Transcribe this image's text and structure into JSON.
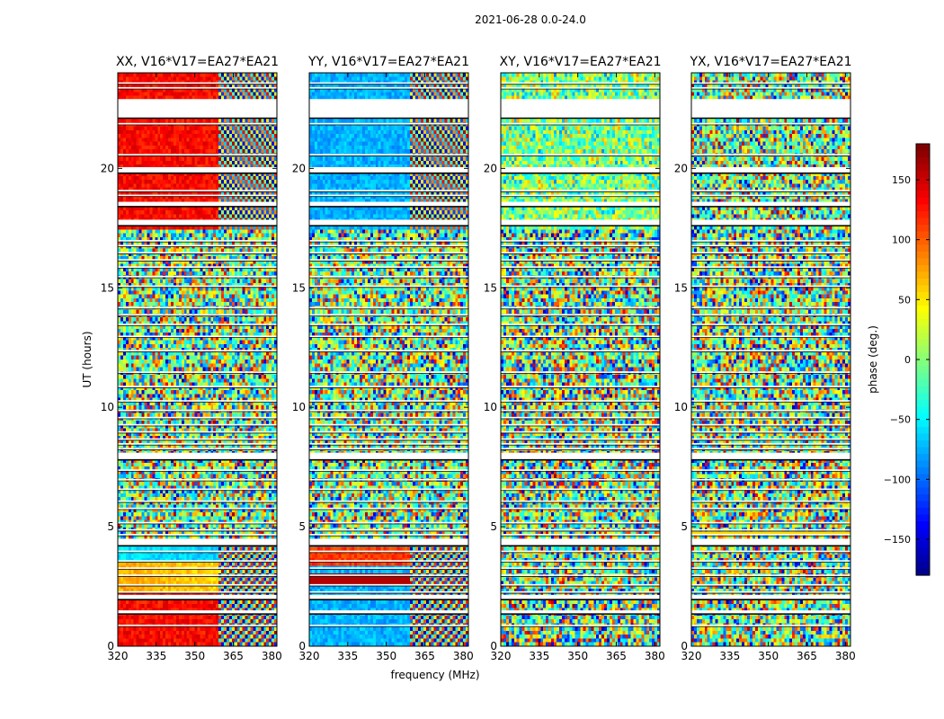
{
  "chart_data": {
    "type": "heatmap",
    "suptitle": "2021-06-28 0.0-24.0",
    "panels": [
      {
        "title": "XX, V16*V17=EA27*EA21",
        "pattern": "xx"
      },
      {
        "title": "YY, V16*V17=EA27*EA21",
        "pattern": "yy"
      },
      {
        "title": "XY, V16*V17=EA27*EA21",
        "pattern": "xy"
      },
      {
        "title": "YX, V16*V17=EA27*EA21",
        "pattern": "yx"
      }
    ],
    "xlabel": "frequency (MHz)",
    "ylabel": "UT (hours)",
    "xlim": [
      320,
      382
    ],
    "ylim": [
      0,
      24
    ],
    "xticks": [
      320,
      335,
      350,
      365,
      380
    ],
    "yticks": [
      0,
      5,
      10,
      15,
      20
    ],
    "colorbar": {
      "label": "phase (deg.)",
      "range": [
        -180,
        180
      ],
      "ticks": [
        150,
        100,
        50,
        0,
        -50,
        -100,
        -150
      ],
      "tick_labels": [
        "150",
        "100",
        "50",
        "0",
        "−50",
        "−100",
        "−150"
      ],
      "colormap": "jet"
    },
    "data_gaps_hours": [
      [
        22.9,
        22.1
      ],
      [
        20.05,
        19.8
      ],
      [
        18.6,
        18.4
      ],
      [
        17.85,
        17.6
      ],
      [
        8.1,
        7.8
      ],
      [
        4.5,
        4.2
      ],
      [
        2.15,
        1.95
      ],
      [
        1.5,
        1.35
      ]
    ],
    "thin_gaps_hours": [
      23.6,
      23.4,
      21.9,
      20.6,
      19.1,
      18.9,
      17.0,
      16.8,
      16.5,
      16.2,
      15.9,
      15.5,
      15.1,
      14.2,
      13.9,
      13.5,
      13.0,
      12.4,
      11.5,
      10.9,
      10.3,
      9.9,
      9.6,
      9.3,
      9.0,
      8.7,
      8.5,
      8.3,
      7.4,
      7.0,
      6.6,
      6.1,
      5.8,
      5.2,
      4.9,
      4.7,
      4.0,
      3.6,
      3.3,
      3.0,
      2.6,
      2.3,
      0.9
    ]
  }
}
